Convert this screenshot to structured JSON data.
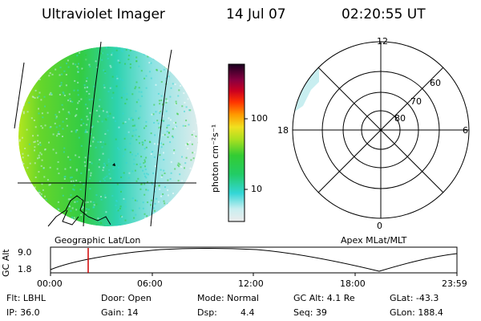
{
  "header": {
    "instrument": "Ultraviolet Imager",
    "date": "14 Jul 07",
    "time": "02:20:55 UT"
  },
  "left_panel": {
    "caption": "Geographic Lat/Lon"
  },
  "right_panel": {
    "caption": "Apex MLat/MLT",
    "mlt_labels": {
      "top": "12",
      "left": "18",
      "right": "6",
      "bottom": "0"
    },
    "mlat_labels": [
      "60",
      "70",
      "80"
    ]
  },
  "colorbar": {
    "unit_label": "photon cm⁻²s⁻¹",
    "ticks": [
      "100",
      "10"
    ],
    "scale": "log"
  },
  "gc_alt_plot": {
    "axis_label": "GC Alt",
    "y_ticks": [
      "9.0",
      "1.8"
    ],
    "x_ticks": [
      "00:00",
      "06:00",
      "12:00",
      "18:00",
      "23:59"
    ],
    "marker_color": "#d00000"
  },
  "status": {
    "row1": {
      "flt": "Flt: LBHL",
      "door": "Door: Open",
      "mode": "Mode: Normal",
      "gc_alt": "GC Alt: 4.1 Re",
      "glat": "GLat: -43.3"
    },
    "row2": {
      "ip": "IP: 36.0",
      "gain": "Gain: 14",
      "dsp_label": "Dsp:",
      "dsp_value": "4.4",
      "seq": "Seq: 39",
      "glon": "GLon: 188.4"
    }
  },
  "colors": {
    "green": "#33cc33",
    "yellow_green": "#b4e61e",
    "cyan": "#33d6d6",
    "light_cyan": "#c8eef0",
    "pale": "#dcecec"
  }
}
